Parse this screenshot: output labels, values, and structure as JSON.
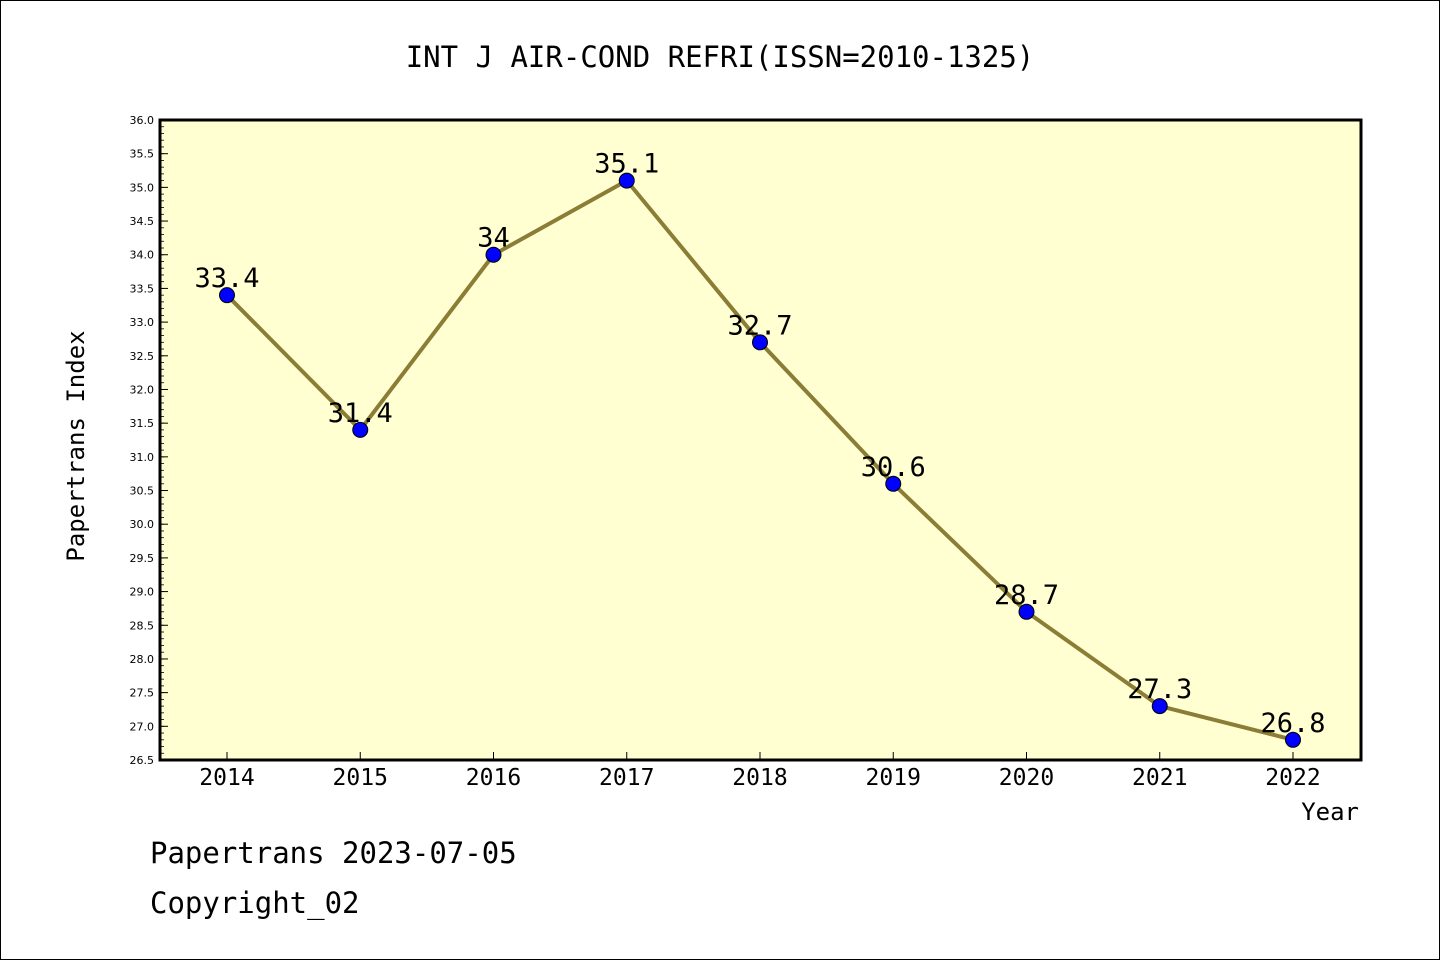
{
  "chart_data": {
    "type": "line",
    "title": "INT J AIR-COND REFRI(ISSN=2010-1325)",
    "xlabel": "Year",
    "ylabel": "Papertrans Index",
    "categories": [
      "2014",
      "2015",
      "2016",
      "2017",
      "2018",
      "2019",
      "2020",
      "2021",
      "2022"
    ],
    "series": [
      {
        "values": [
          33.4,
          31.4,
          34.0,
          35.1,
          32.7,
          30.6,
          28.7,
          27.3,
          26.8
        ],
        "labels": [
          "33.4",
          "31.4",
          "34",
          "35.1",
          "32.7",
          "30.6",
          "28.7",
          "27.3",
          "26.8"
        ],
        "line_color": "#8b7d35",
        "marker_color": "#0000ff"
      }
    ],
    "ylim": [
      26.5,
      36.0
    ],
    "yticks": [
      "26.5",
      "27.0",
      "27.5",
      "28.0",
      "28.5",
      "29.0",
      "29.5",
      "30.0",
      "30.5",
      "31.0",
      "31.5",
      "32.0",
      "32.5",
      "33.0",
      "33.5",
      "34.0",
      "34.5",
      "35.0",
      "35.5",
      "36.0"
    ],
    "plot_background": "#ffffd2",
    "grid": false,
    "legend": "none"
  },
  "footer": {
    "line1": "Papertrans 2023-07-05",
    "line2": "Copyright_02"
  }
}
